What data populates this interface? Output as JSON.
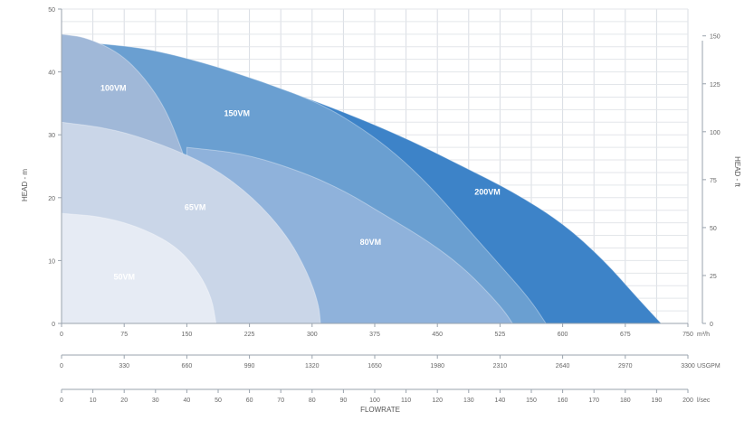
{
  "chart_data": {
    "type": "area",
    "title": "",
    "xlabel": "FLOWRATE",
    "ylabel": "HEAD - m",
    "y2label": "HEAD - ft",
    "xlim": [
      0,
      750
    ],
    "ylim": [
      0,
      50
    ],
    "y2lim": [
      0,
      164
    ],
    "grid": true,
    "legend": "none",
    "yticks": [
      {
        "v": 0,
        "label": "0"
      },
      {
        "v": 10,
        "label": "10"
      },
      {
        "v": 20,
        "label": "20"
      },
      {
        "v": 30,
        "label": "30"
      },
      {
        "v": 40,
        "label": "40"
      },
      {
        "v": 50,
        "label": "50"
      }
    ],
    "y2ticks": [
      {
        "v": 0,
        "label": "0"
      },
      {
        "v": 25,
        "label": "25"
      },
      {
        "v": 50,
        "label": "50"
      },
      {
        "v": 75,
        "label": "75"
      },
      {
        "v": 100,
        "label": "100"
      },
      {
        "v": 125,
        "label": "125"
      },
      {
        "v": 150,
        "label": "150"
      }
    ],
    "x_scales": [
      {
        "unit": "m³/h",
        "ticks": [
          {
            "v": 0,
            "label": "0"
          },
          {
            "v": 75,
            "label": "75"
          },
          {
            "v": 150,
            "label": "150"
          },
          {
            "v": 225,
            "label": "225"
          },
          {
            "v": 300,
            "label": "300"
          },
          {
            "v": 375,
            "label": "375"
          },
          {
            "v": 450,
            "label": "450"
          },
          {
            "v": 525,
            "label": "525"
          },
          {
            "v": 600,
            "label": "600"
          },
          {
            "v": 675,
            "label": "675"
          },
          {
            "v": 750,
            "label": "750"
          }
        ]
      },
      {
        "unit": "USGPM",
        "ticks": [
          {
            "v": 0,
            "label": "0"
          },
          {
            "v": 75,
            "label": "330"
          },
          {
            "v": 150,
            "label": "660"
          },
          {
            "v": 225,
            "label": "990"
          },
          {
            "v": 300,
            "label": "1320"
          },
          {
            "v": 375,
            "label": "1650"
          },
          {
            "v": 450,
            "label": "1980"
          },
          {
            "v": 525,
            "label": "2310"
          },
          {
            "v": 600,
            "label": "2640"
          },
          {
            "v": 675,
            "label": "2970"
          },
          {
            "v": 750,
            "label": "3300"
          }
        ]
      },
      {
        "unit": "l/sec",
        "ticks": [
          {
            "v": 0,
            "label": "0"
          },
          {
            "v": 37.5,
            "label": "10"
          },
          {
            "v": 75,
            "label": "20"
          },
          {
            "v": 112.5,
            "label": "30"
          },
          {
            "v": 150,
            "label": "40"
          },
          {
            "v": 187.5,
            "label": "50"
          },
          {
            "v": 225,
            "label": "60"
          },
          {
            "v": 262.5,
            "label": "70"
          },
          {
            "v": 300,
            "label": "80"
          },
          {
            "v": 337.5,
            "label": "90"
          },
          {
            "v": 375,
            "label": "100"
          },
          {
            "v": 412.5,
            "label": "110"
          },
          {
            "v": 450,
            "label": "120"
          },
          {
            "v": 487.5,
            "label": "130"
          },
          {
            "v": 525,
            "label": "140"
          },
          {
            "v": 562.5,
            "label": "150"
          },
          {
            "v": 600,
            "label": "160"
          },
          {
            "v": 637.5,
            "label": "170"
          },
          {
            "v": 675,
            "label": "180"
          },
          {
            "v": 712.5,
            "label": "190"
          },
          {
            "v": 750,
            "label": "200"
          }
        ]
      }
    ],
    "series": [
      {
        "name": "200VM",
        "color": "#3d83c8",
        "label_at": [
          510,
          20.5
        ],
        "points": [
          [
            45,
            44.5
          ],
          [
            150,
            42
          ],
          [
            250,
            38
          ],
          [
            350,
            33
          ],
          [
            420,
            29
          ],
          [
            480,
            25
          ],
          [
            540,
            21
          ],
          [
            600,
            16
          ],
          [
            650,
            10
          ],
          [
            690,
            4
          ],
          [
            718,
            0
          ]
        ]
      },
      {
        "name": "150VM",
        "color": "#6a9fd1",
        "label_at": [
          210,
          33
        ],
        "points": [
          [
            45,
            44.5
          ],
          [
            100,
            43.8
          ],
          [
            170,
            41.5
          ],
          [
            240,
            38.5
          ],
          [
            310,
            35
          ],
          [
            360,
            31
          ],
          [
            400,
            27
          ],
          [
            440,
            22
          ],
          [
            480,
            16
          ],
          [
            520,
            10
          ],
          [
            560,
            4
          ],
          [
            580,
            0
          ]
        ]
      },
      {
        "name": "100VM",
        "color": "#a0b8d8",
        "label_at": [
          62,
          37
        ],
        "points": [
          [
            0,
            46
          ],
          [
            30,
            45.5
          ],
          [
            70,
            43
          ],
          [
            100,
            39
          ],
          [
            125,
            34
          ],
          [
            143,
            28
          ],
          [
            150,
            25
          ],
          [
            155,
            22
          ],
          [
            160,
            18
          ],
          [
            164,
            12
          ],
          [
            166,
            6
          ],
          [
            166,
            0
          ]
        ]
      },
      {
        "name": "80VM",
        "color": "#8fb2db",
        "label_at": [
          370,
          12.5
        ],
        "points": [
          [
            150,
            28
          ],
          [
            220,
            27
          ],
          [
            290,
            24
          ],
          [
            340,
            21
          ],
          [
            390,
            17
          ],
          [
            440,
            13
          ],
          [
            480,
            9
          ],
          [
            510,
            5
          ],
          [
            530,
            2
          ],
          [
            540,
            0
          ]
        ]
      },
      {
        "name": "65VM",
        "color": "#cad6e8",
        "label_at": [
          160,
          18
        ],
        "points": [
          [
            0,
            32
          ],
          [
            60,
            31
          ],
          [
            120,
            28.5
          ],
          [
            180,
            25
          ],
          [
            230,
            20
          ],
          [
            270,
            14
          ],
          [
            295,
            8
          ],
          [
            308,
            3
          ],
          [
            310,
            0
          ]
        ]
      },
      {
        "name": "50VM",
        "color": "#e6ebf4",
        "label_at": [
          75,
          7
        ],
        "points": [
          [
            0,
            17.5
          ],
          [
            50,
            17
          ],
          [
            100,
            15
          ],
          [
            140,
            12
          ],
          [
            165,
            8
          ],
          [
            180,
            4
          ],
          [
            185,
            0
          ]
        ]
      }
    ]
  }
}
